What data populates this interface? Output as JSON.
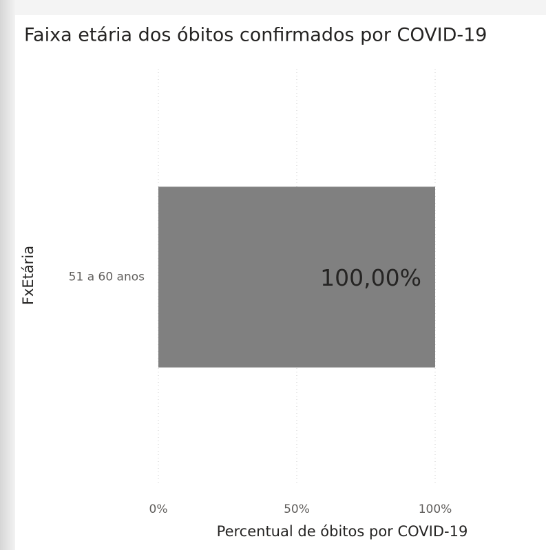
{
  "chart_data": {
    "type": "bar",
    "orientation": "horizontal",
    "title": "Faixa etária dos óbitos confirmados por COVID-19",
    "x_label": "Percentual de óbitos por COVID-19",
    "y_label": "FxEtária",
    "categories": [
      "51 a 60 anos"
    ],
    "values": [
      100
    ],
    "value_labels": [
      "100,00%"
    ],
    "color": "#808080",
    "xlim": [
      0,
      100
    ],
    "xticks": [
      {
        "value": 0,
        "label": "0%"
      },
      {
        "value": 50,
        "label": "50%"
      },
      {
        "value": 100,
        "label": "100%"
      }
    ],
    "grid": true
  }
}
